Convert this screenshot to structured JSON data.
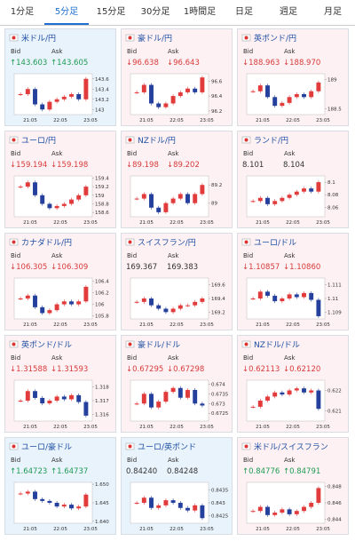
{
  "tabs": {
    "items": [
      "1分足",
      "5分足",
      "15分足",
      "30分足",
      "1時間足",
      "日足",
      "週足",
      "月足"
    ],
    "active": 1
  },
  "labels": {
    "bid": "Bid",
    "ask": "Ask"
  },
  "colors": {
    "up": "#e23b3b",
    "down": "#24409c",
    "rise_text": "#1e9a52",
    "fall_text": "#d83a3a",
    "title": "#1f4fa3"
  },
  "cards": [
    {
      "name": "米ドル/円",
      "bg": "#e9f3fc",
      "bid": "↑143.603",
      "ask": "↑143.605",
      "ylim": [
        142.9,
        143.7
      ],
      "yticks": [
        143.6,
        143.4,
        143.2,
        143
      ],
      "xticks": [
        "21:05",
        "22:05",
        "23:05"
      ],
      "values": [
        143.3,
        143.4,
        143.1,
        143.0,
        143.15,
        143.2,
        143.25,
        143.3,
        143.2,
        143.6
      ]
    },
    {
      "name": "豪ドル/円",
      "bg": "#fdf1f3",
      "bid": "↓96.638",
      "ask": "↓96.643",
      "ylim": [
        96.15,
        96.7
      ],
      "yticks": [
        96.6,
        96.4,
        96.2
      ],
      "xticks": [
        "21:05",
        "22:05",
        "23:05"
      ],
      "values": [
        96.45,
        96.55,
        96.3,
        96.25,
        96.3,
        96.4,
        96.45,
        96.5,
        96.45,
        96.65
      ]
    },
    {
      "name": "英ポンド/円",
      "bg": "#fdf1f3",
      "bid": "↓188.963",
      "ask": "↓188.970",
      "ylim": [
        188.4,
        189.1
      ],
      "yticks": [
        189,
        188.5
      ],
      "xticks": [
        "21:05",
        "22:05",
        "23:05"
      ],
      "values": [
        188.8,
        188.9,
        188.7,
        188.55,
        188.6,
        188.7,
        188.75,
        188.7,
        188.8,
        188.95
      ]
    },
    {
      "name": "ユーロ/円",
      "bg": "#fdf1f3",
      "bid": "↓159.194",
      "ask": "↓159.198",
      "ylim": [
        158.5,
        159.45
      ],
      "yticks": [
        159.4,
        159.2,
        159,
        158.8,
        158.6
      ],
      "xticks": [
        "21:05",
        "22:05",
        "23:05"
      ],
      "values": [
        159.2,
        159.3,
        159.0,
        158.8,
        158.7,
        158.75,
        158.8,
        158.9,
        159.0,
        159.2
      ]
    },
    {
      "name": "NZドル/円",
      "bg": "#fdf1f3",
      "bid": "↓89.198",
      "ask": "↓89.202",
      "ylim": [
        88.85,
        89.3
      ],
      "yticks": [
        89.2,
        89
      ],
      "xticks": [
        "21:05",
        "22:05",
        "23:05"
      ],
      "values": [
        89.05,
        89.1,
        88.95,
        88.9,
        89.0,
        89.05,
        89.1,
        89.0,
        89.1,
        89.2
      ]
    },
    {
      "name": "ランド/円",
      "bg": "#fdf1f3",
      "bid": "8.101",
      "ask": "8.104",
      "ylim": [
        8.045,
        8.11
      ],
      "yticks": [
        8.1,
        8.08,
        8.06
      ],
      "xticks": [
        "21:05",
        "22:05",
        "23:05"
      ],
      "values": [
        8.07,
        8.075,
        8.065,
        8.07,
        8.075,
        8.08,
        8.085,
        8.09,
        8.085,
        8.1
      ]
    },
    {
      "name": "カナダドル/円",
      "bg": "#fdf1f3",
      "bid": "↓106.305",
      "ask": "↓106.309",
      "ylim": [
        105.75,
        106.45
      ],
      "yticks": [
        106.4,
        106.2,
        106,
        105.8
      ],
      "xticks": [
        "21:05",
        "22:05",
        "23:05"
      ],
      "values": [
        106.1,
        106.15,
        105.95,
        105.85,
        105.9,
        106.0,
        106.05,
        106.0,
        106.05,
        106.3
      ]
    },
    {
      "name": "スイスフラン/円",
      "bg": "#fdf1f3",
      "bid": "169.367",
      "ask": "169.383",
      "ylim": [
        169.1,
        169.7
      ],
      "yticks": [
        169.6,
        169.4,
        169.2
      ],
      "xticks": [
        "21:05",
        "22:05",
        "23:05"
      ],
      "values": [
        169.35,
        169.4,
        169.3,
        169.25,
        169.2,
        169.25,
        169.3,
        169.3,
        169.35,
        169.4
      ]
    },
    {
      "name": "ユーロ/ドル",
      "bg": "#fdf1f3",
      "bid": "↓1.10857",
      "ask": "↓1.10860",
      "ylim": [
        1.1085,
        1.1115
      ],
      "yticks": [
        1.111,
        1.11,
        1.109
      ],
      "xticks": [
        "21:05",
        "22:05",
        "23:05"
      ],
      "values": [
        1.11,
        1.1105,
        1.1102,
        1.1098,
        1.11,
        1.1103,
        1.1101,
        1.1104,
        1.1099,
        1.1087
      ]
    },
    {
      "name": "英ポンド/ドル",
      "bg": "#fdf1f3",
      "bid": "↓1.31588",
      "ask": "↓1.31593",
      "ylim": [
        1.3155,
        1.3185
      ],
      "yticks": [
        1.318,
        1.317,
        1.316
      ],
      "xticks": [
        "21:05",
        "22:05",
        "23:05"
      ],
      "values": [
        1.317,
        1.3177,
        1.3172,
        1.3168,
        1.317,
        1.3173,
        1.3171,
        1.3174,
        1.3169,
        1.3159
      ]
    },
    {
      "name": "豪ドル/ドル",
      "bg": "#fdf1f3",
      "bid": "↓0.67295",
      "ask": "↓0.67298",
      "ylim": [
        0.6721,
        0.6742
      ],
      "yticks": [
        0.674,
        0.6735,
        0.673,
        0.6725
      ],
      "xticks": [
        "21:05",
        "22:05",
        "23:05"
      ],
      "values": [
        0.673,
        0.6735,
        0.6728,
        0.6731,
        0.6736,
        0.6738,
        0.6733,
        0.6737,
        0.673,
        0.6729
      ]
    },
    {
      "name": "NZドル/ドル",
      "bg": "#fdf1f3",
      "bid": "↓0.62113",
      "ask": "↓0.62120",
      "ylim": [
        0.6205,
        0.6225
      ],
      "yticks": [
        0.622,
        0.621
      ],
      "xticks": [
        "21:05",
        "22:05",
        "23:05"
      ],
      "values": [
        0.6212,
        0.6215,
        0.6217,
        0.6219,
        0.6218,
        0.622,
        0.6221,
        0.6219,
        0.622,
        0.6211
      ]
    },
    {
      "name": "ユーロ/豪ドル",
      "bg": "#e9f3fc",
      "bid": "↑1.64723",
      "ask": "↑1.64737",
      "ylim": [
        1.6395,
        1.6505
      ],
      "yticks": [
        {
          "value": 1.65,
          "label": "1.650"
        },
        {
          "value": 1.645,
          "label": "1.645"
        },
        {
          "value": 1.64,
          "label": "1.640"
        }
      ],
      "xticks": [
        "21:05",
        "22:05",
        "23:05"
      ],
      "values": [
        1.6475,
        1.648,
        1.646,
        1.6455,
        1.645,
        1.644,
        1.6445,
        1.6435,
        1.644,
        1.6472
      ]
    },
    {
      "name": "ユーロ/英ポンド",
      "bg": "#e9f3fc",
      "bid": "0.84240",
      "ask": "0.84248",
      "ylim": [
        0.8422,
        0.8438
      ],
      "yticks": [
        0.8435,
        0.843,
        0.8425
      ],
      "xticks": [
        "21:05",
        "22:05",
        "23:05"
      ],
      "values": [
        0.843,
        0.8432,
        0.8428,
        0.8429,
        0.8431,
        0.843,
        0.8428,
        0.8427,
        0.8429,
        0.8424
      ]
    },
    {
      "name": "米ドル/スイスフラン",
      "bg": "#fdf1f3",
      "bid": "↑0.84776",
      "ask": "↑0.84791",
      "ylim": [
        0.8435,
        0.8485
      ],
      "yticks": [
        0.848,
        0.846,
        0.844
      ],
      "xticks": [
        "21:05",
        "22:05",
        "23:05"
      ],
      "values": [
        0.845,
        0.8455,
        0.8445,
        0.8448,
        0.8452,
        0.8446,
        0.845,
        0.8455,
        0.846,
        0.8478
      ]
    }
  ]
}
